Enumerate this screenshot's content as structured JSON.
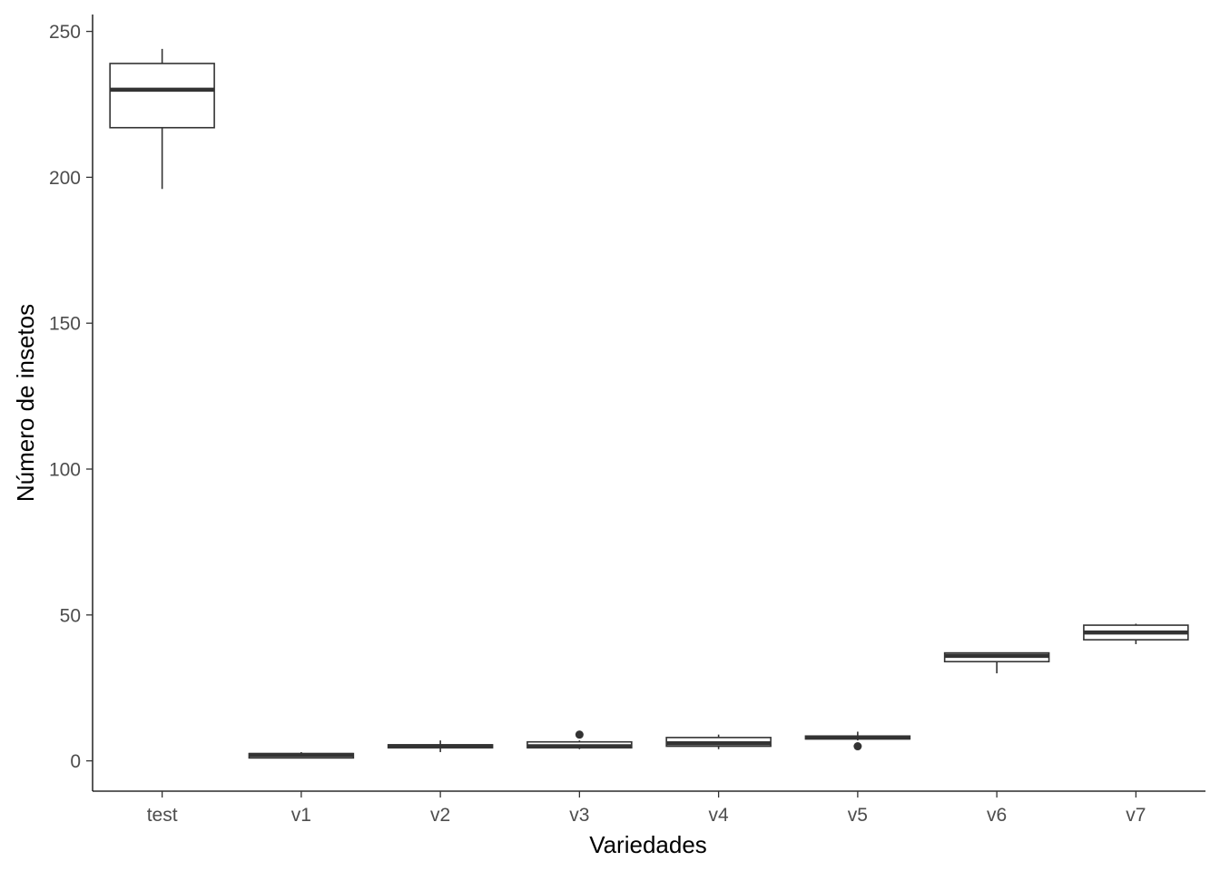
{
  "chart_data": {
    "type": "boxplot",
    "title": "",
    "xlabel": "Variedades",
    "ylabel": "Número de insetos",
    "categories": [
      "test",
      "v1",
      "v2",
      "v3",
      "v4",
      "v5",
      "v6",
      "v7"
    ],
    "yticks": [
      0,
      50,
      100,
      150,
      200,
      250
    ],
    "ylim": [
      -11,
      256
    ],
    "grid": false,
    "legend": "none",
    "boxes": [
      {
        "category": "test",
        "min": 196,
        "q1": 217,
        "median": 230,
        "q3": 239,
        "max": 244,
        "outliers": []
      },
      {
        "category": "v1",
        "min": 1,
        "q1": 1,
        "median": 2,
        "q3": 2.5,
        "max": 3,
        "outliers": []
      },
      {
        "category": "v2",
        "min": 3,
        "q1": 4.5,
        "median": 5,
        "q3": 5.5,
        "max": 7,
        "outliers": []
      },
      {
        "category": "v3",
        "min": 4,
        "q1": 4.5,
        "median": 5,
        "q3": 6.5,
        "max": 7,
        "outliers": [
          9
        ]
      },
      {
        "category": "v4",
        "min": 4,
        "q1": 5,
        "median": 6,
        "q3": 8,
        "max": 9,
        "outliers": []
      },
      {
        "category": "v5",
        "min": 7,
        "q1": 7.5,
        "median": 8,
        "q3": 8.5,
        "max": 10,
        "outliers": [
          5
        ]
      },
      {
        "category": "v6",
        "min": 30,
        "q1": 34,
        "median": 36,
        "q3": 37,
        "max": 37,
        "outliers": []
      },
      {
        "category": "v7",
        "min": 40,
        "q1": 41.5,
        "median": 44,
        "q3": 46.5,
        "max": 47,
        "outliers": []
      }
    ],
    "colors": {
      "box_line": "#333333",
      "box_fill": "#ffffff",
      "axis": "#000000",
      "tick_text": "#4d4d4d"
    }
  }
}
